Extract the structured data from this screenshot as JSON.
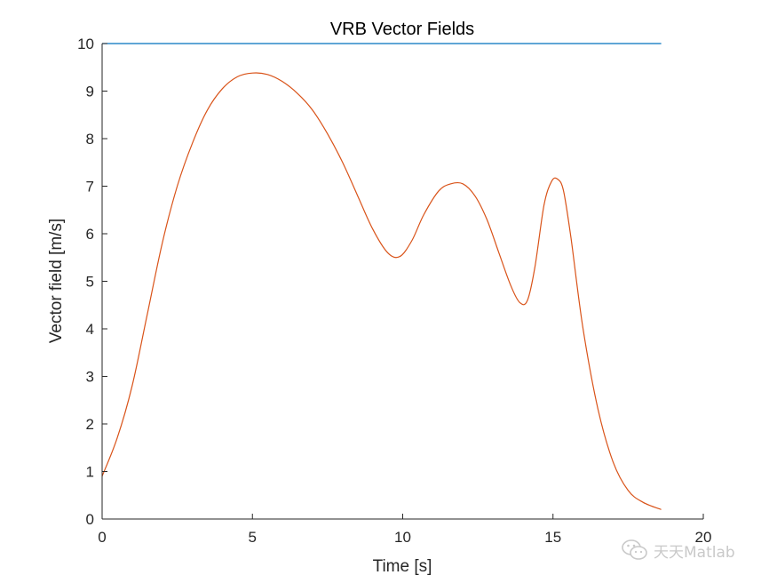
{
  "chart_data": {
    "type": "line",
    "title": "VRB Vector Fields",
    "xlabel": "Time [s]",
    "ylabel": "Vector field [m/s]",
    "xlim": [
      0,
      20
    ],
    "ylim": [
      0,
      10
    ],
    "xticks": [
      0,
      5,
      10,
      15,
      20
    ],
    "yticks": [
      0,
      1,
      2,
      3,
      4,
      5,
      6,
      7,
      8,
      9,
      10
    ],
    "grid": false,
    "legend": "none",
    "series": [
      {
        "color": "#0072BD",
        "x": [
          0,
          18.6
        ],
        "y": [
          10,
          10
        ]
      },
      {
        "color": "#D95319",
        "x": [
          0,
          0.5,
          1.0,
          1.5,
          2.0,
          2.5,
          3.0,
          3.5,
          4.0,
          4.5,
          5.0,
          5.5,
          6.0,
          6.5,
          7.0,
          7.5,
          8.0,
          8.5,
          9.0,
          9.5,
          9.9,
          10.3,
          10.7,
          11.2,
          11.6,
          12.0,
          12.4,
          12.8,
          13.2,
          13.6,
          13.9,
          14.15,
          14.4,
          14.7,
          14.95,
          15.15,
          15.35,
          15.6,
          16.0,
          16.5,
          17.0,
          17.5,
          18.0,
          18.6
        ],
        "y": [
          0.9,
          1.7,
          2.8,
          4.3,
          5.8,
          7.0,
          7.9,
          8.6,
          9.05,
          9.3,
          9.38,
          9.35,
          9.2,
          8.95,
          8.6,
          8.1,
          7.5,
          6.8,
          6.1,
          5.6,
          5.52,
          5.85,
          6.4,
          6.9,
          7.05,
          7.05,
          6.8,
          6.3,
          5.6,
          4.9,
          4.55,
          4.6,
          5.3,
          6.6,
          7.1,
          7.15,
          6.9,
          5.9,
          4.0,
          2.3,
          1.2,
          0.6,
          0.35,
          0.2
        ]
      }
    ]
  },
  "watermark": {
    "text": "天天Matlab",
    "icon": "wechat-icon"
  }
}
